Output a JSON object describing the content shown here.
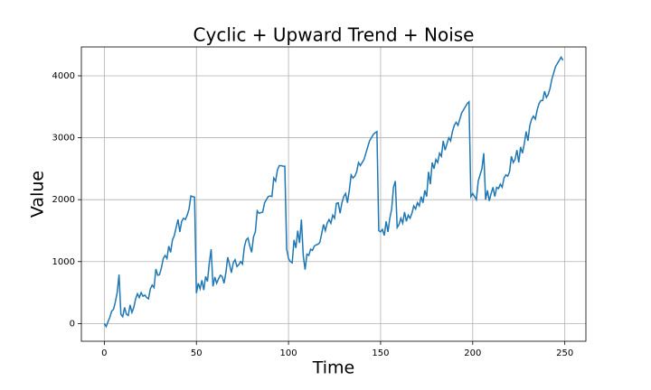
{
  "chart_data": {
    "type": "line",
    "title": "Cyclic + Upward Trend + Noise",
    "x_label": "Time",
    "y_label": "Value",
    "color": "#1f77b4",
    "grid": true,
    "xlim": [
      -12.45,
      261.45
    ],
    "ylim": [
      -286,
      4466
    ],
    "xticks": [
      0,
      50,
      100,
      150,
      200,
      250
    ],
    "yticks": [
      0,
      1000,
      2000,
      3000,
      4000
    ],
    "x": [
      0,
      1,
      2,
      3,
      4,
      5,
      6,
      7,
      8,
      9,
      10,
      11,
      12,
      13,
      14,
      15,
      16,
      17,
      18,
      19,
      20,
      21,
      22,
      23,
      24,
      25,
      26,
      27,
      28,
      29,
      30,
      31,
      32,
      33,
      34,
      35,
      36,
      37,
      38,
      39,
      40,
      41,
      42,
      43,
      44,
      45,
      46,
      47,
      48,
      49,
      50,
      51,
      52,
      53,
      54,
      55,
      56,
      57,
      58,
      59,
      60,
      61,
      62,
      63,
      64,
      65,
      66,
      67,
      68,
      69,
      70,
      71,
      72,
      73,
      74,
      75,
      76,
      77,
      78,
      79,
      80,
      81,
      82,
      83,
      84,
      85,
      86,
      87,
      88,
      89,
      90,
      91,
      92,
      93,
      94,
      95,
      96,
      97,
      98,
      99,
      100,
      101,
      102,
      103,
      104,
      105,
      106,
      107,
      108,
      109,
      110,
      111,
      112,
      113,
      114,
      115,
      116,
      117,
      118,
      119,
      120,
      121,
      122,
      123,
      124,
      125,
      126,
      127,
      128,
      129,
      130,
      131,
      132,
      133,
      134,
      135,
      136,
      137,
      138,
      139,
      140,
      141,
      142,
      143,
      144,
      145,
      146,
      147,
      148,
      149,
      150,
      151,
      152,
      153,
      154,
      155,
      156,
      157,
      158,
      159,
      160,
      161,
      162,
      163,
      164,
      165,
      166,
      167,
      168,
      169,
      170,
      171,
      172,
      173,
      174,
      175,
      176,
      177,
      178,
      179,
      180,
      181,
      182,
      183,
      184,
      185,
      186,
      187,
      188,
      189,
      190,
      191,
      192,
      193,
      194,
      195,
      196,
      197,
      198,
      199,
      200,
      201,
      202,
      203,
      204,
      205,
      206,
      207,
      208,
      209,
      210,
      211,
      212,
      213,
      214,
      215,
      216,
      217,
      218,
      219,
      220,
      221,
      222,
      223,
      224,
      225,
      226,
      227,
      228,
      229,
      230,
      231,
      232,
      233,
      234,
      235,
      236,
      237,
      238,
      239,
      240,
      241,
      242,
      243,
      244,
      245,
      246,
      247,
      248,
      249
    ],
    "values": [
      0,
      -50,
      30,
      100,
      200,
      230,
      350,
      500,
      790,
      150,
      110,
      260,
      150,
      130,
      300,
      180,
      260,
      400,
      480,
      420,
      500,
      440,
      460,
      420,
      400,
      560,
      620,
      580,
      880,
      780,
      790,
      900,
      1050,
      1100,
      1050,
      1250,
      1150,
      1350,
      1420,
      1550,
      1680,
      1480,
      1650,
      1700,
      1680,
      1750,
      1850,
      2060,
      2050,
      2040,
      490,
      650,
      560,
      700,
      540,
      760,
      680,
      980,
      1200,
      600,
      750,
      650,
      720,
      780,
      760,
      650,
      820,
      1070,
      950,
      820,
      980,
      1030,
      920,
      950,
      1000,
      960,
      1230,
      1350,
      1380,
      1250,
      1150,
      1400,
      1480,
      1820,
      1780,
      1790,
      1800,
      1950,
      2000,
      2050,
      2060,
      2050,
      2350,
      2300,
      2480,
      2550,
      2550,
      2540,
      2540,
      1200,
      1050,
      1000,
      980,
      1350,
      1220,
      1500,
      1300,
      1680,
      1100,
      870,
      1120,
      1100,
      1200,
      1180,
      1250,
      1270,
      1280,
      1310,
      1450,
      1600,
      1500,
      1620,
      1680,
      1620,
      1750,
      1700,
      1940,
      1950,
      1780,
      1950,
      2050,
      2100,
      1950,
      2150,
      2400,
      2350,
      2380,
      2450,
      2600,
      2550,
      2600,
      2650,
      2750,
      2850,
      2950,
      3000,
      3050,
      3080,
      3100,
      1500,
      1480,
      1520,
      1420,
      1650,
      1480,
      1700,
      1850,
      2200,
      2300,
      1550,
      1600,
      1700,
      1620,
      1800,
      1650,
      1750,
      1700,
      1780,
      1900,
      1850,
      1950,
      1900,
      2050,
      1950,
      2150,
      2050,
      2450,
      2250,
      2600,
      2500,
      2650,
      2600,
      2750,
      2700,
      2950,
      2800,
      2900,
      3000,
      2950,
      3100,
      3200,
      3250,
      3200,
      3300,
      3400,
      3450,
      3500,
      3550,
      3580,
      2050,
      2100,
      2050,
      2000,
      2300,
      2400,
      2500,
      2750,
      2000,
      2150,
      1980,
      2100,
      2200,
      2050,
      2200,
      2180,
      2250,
      2200,
      2350,
      2400,
      2380,
      2450,
      2700,
      2600,
      2650,
      2800,
      2600,
      2850,
      2750,
      2900,
      3100,
      2950,
      3200,
      3300,
      3350,
      3300,
      3450,
      3550,
      3600,
      3600,
      3750,
      3650,
      3700,
      3800,
      3950,
      4050,
      4150,
      4200,
      4250,
      4300,
      4250
    ]
  }
}
